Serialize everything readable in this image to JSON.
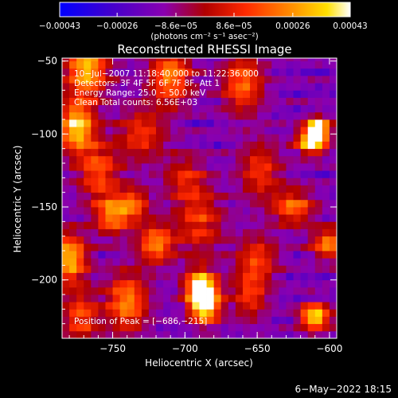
{
  "chart_data": {
    "type": "heatmap",
    "title": "Reconstructed RHESSI Image",
    "xlabel": "Heliocentric X (arcsec)",
    "ylabel": "Heliocentric Y (arcsec)",
    "xlim": [
      -785,
      -595
    ],
    "ylim": [
      -240,
      -48
    ],
    "x_ticks": [
      -750,
      -700,
      -650,
      -600
    ],
    "x_tick_labels": [
      "−750",
      "−700",
      "−650",
      "−600"
    ],
    "y_ticks": [
      -50,
      -100,
      -150,
      -200
    ],
    "y_tick_labels": [
      "−50",
      "−100",
      "−150",
      "−200"
    ],
    "colorbar": {
      "range": [
        -0.00043,
        0.00043
      ],
      "ticks": [
        -0.00043,
        -0.00026,
        -8.6e-05,
        8.6e-05,
        0.00026,
        0.00043
      ],
      "tick_labels": [
        "−0.00043",
        "−0.00026",
        "−8.6e−05",
        "8.6e−05",
        "0.00026",
        "0.00043"
      ],
      "units_label": "(photons cm⁻² s⁻¹ asec⁻²)",
      "colormap": [
        "#0000ff",
        "#5a00a0",
        "#8a00c0",
        "#b00000",
        "#ff3000",
        "#ff9000",
        "#ffe000",
        "#ffffff"
      ]
    },
    "annotations": [
      "10−Jul−2007 11:18:40.000 to 11:22:36.000",
      "Detectors: 3F 4F 5F 6F 7F 8F, Att 1",
      "Energy Range: 25.0 − 50.0 keV",
      "Clean    Total counts: 6.56E+03"
    ],
    "peak_label": "Position of Peak = [−686,−215]",
    "peak": [
      -686,
      -215
    ]
  },
  "footer": {
    "timestamp": "6−May−2022 18:15"
  },
  "colors": {
    "background": "#000000",
    "axis": "#ffffff"
  }
}
